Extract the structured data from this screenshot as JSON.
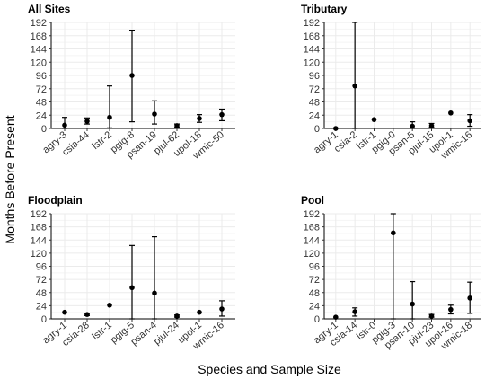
{
  "figure": {
    "ylabel": "Months Before Present",
    "xlabel": "Species and Sample Size"
  },
  "chart_data": [
    {
      "type": "scatter",
      "title": "All Sites",
      "ylim": [
        0,
        192
      ],
      "yticks": [
        0,
        24,
        48,
        72,
        96,
        120,
        144,
        168,
        192
      ],
      "categories": [
        "agry-3",
        "csia-44",
        "lstr-2",
        "pgig-8",
        "psan-19",
        "pjul-62",
        "upol-18",
        "wmic-50"
      ],
      "points": [
        {
          "y": 6,
          "low": 0,
          "high": 20
        },
        {
          "y": 13,
          "low": 8,
          "high": 19
        },
        {
          "y": 20,
          "low": 1,
          "high": 77
        },
        {
          "y": 96,
          "low": 12,
          "high": 178
        },
        {
          "y": 26,
          "low": 8,
          "high": 50
        },
        {
          "y": 5,
          "low": 2,
          "high": 8
        },
        {
          "y": 18,
          "low": 11,
          "high": 25
        },
        {
          "y": 25,
          "low": 14,
          "high": 35
        }
      ]
    },
    {
      "type": "scatter",
      "title": "Tributary",
      "ylim": [
        0,
        192
      ],
      "yticks": [
        0,
        24,
        48,
        72,
        96,
        120,
        144,
        168,
        192
      ],
      "categories": [
        "agry-1",
        "csia-2",
        "lstr-1",
        "pgig-0",
        "psan-5",
        "pjul-15",
        "upol-1",
        "wmic-16"
      ],
      "points": [
        {
          "y": 0,
          "low": null,
          "high": null
        },
        {
          "y": 77,
          "low": 0,
          "high": 192
        },
        {
          "y": 16,
          "low": null,
          "high": null
        },
        {
          "y": null,
          "low": null,
          "high": null
        },
        {
          "y": 4,
          "low": 0,
          "high": 12
        },
        {
          "y": 5,
          "low": 2,
          "high": 9
        },
        {
          "y": 28,
          "low": null,
          "high": null
        },
        {
          "y": 14,
          "low": 4,
          "high": 25
        }
      ]
    },
    {
      "type": "scatter",
      "title": "Floodplain",
      "ylim": [
        0,
        192
      ],
      "yticks": [
        0,
        24,
        48,
        72,
        96,
        120,
        144,
        168,
        192
      ],
      "categories": [
        "agry-1",
        "csia-28",
        "lstr-1",
        "pgig-5",
        "psan-4",
        "pjul-24",
        "upol-1",
        "wmic-16"
      ],
      "points": [
        {
          "y": 12,
          "low": null,
          "high": null
        },
        {
          "y": 8,
          "low": 6,
          "high": 10
        },
        {
          "y": 25,
          "low": null,
          "high": null
        },
        {
          "y": 57,
          "low": 0,
          "high": 134
        },
        {
          "y": 47,
          "low": 0,
          "high": 150
        },
        {
          "y": 5,
          "low": 3,
          "high": 7
        },
        {
          "y": 12,
          "low": null,
          "high": null
        },
        {
          "y": 18,
          "low": 5,
          "high": 33
        }
      ]
    },
    {
      "type": "scatter",
      "title": "Pool",
      "ylim": [
        0,
        192
      ],
      "yticks": [
        0,
        24,
        48,
        72,
        96,
        120,
        144,
        168,
        192
      ],
      "categories": [
        "agry-1",
        "csia-14",
        "lstr-0",
        "pgig-3",
        "psan-10",
        "pjul-23",
        "upol-16",
        "wmic-18"
      ],
      "points": [
        {
          "y": 3,
          "low": null,
          "high": null
        },
        {
          "y": 13,
          "low": 5,
          "high": 20
        },
        {
          "y": null,
          "low": null,
          "high": null
        },
        {
          "y": 157,
          "low": 0,
          "high": 192
        },
        {
          "y": 27,
          "low": 0,
          "high": 68
        },
        {
          "y": 5,
          "low": 3,
          "high": 8
        },
        {
          "y": 17,
          "low": 9,
          "high": 25
        },
        {
          "y": 38,
          "low": 10,
          "high": 67
        }
      ]
    }
  ]
}
